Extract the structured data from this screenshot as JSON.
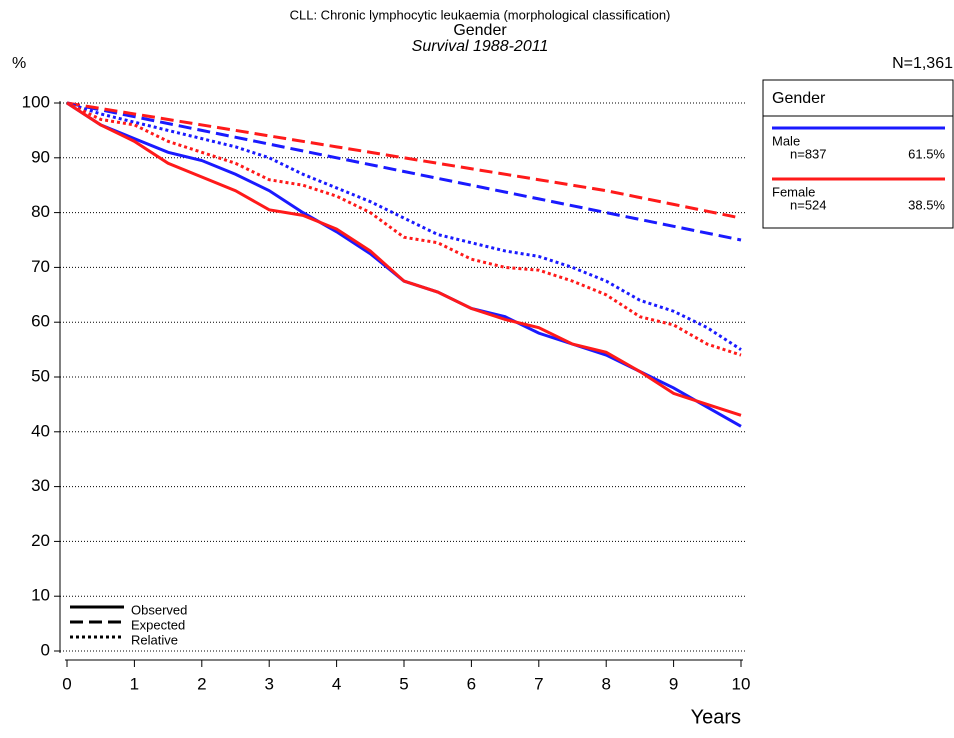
{
  "chart_data": {
    "type": "line",
    "title": "CLL: Chronic lymphocytic leukaemia (morphological classification)",
    "subtitle": "Gender",
    "period": "Survival 1988-2011",
    "y_label": "%",
    "x_label": "Years",
    "total": "N=1,361",
    "legend_title": "Gender",
    "groups": [
      {
        "name": "Male",
        "n_label": "n=837",
        "share_label": "61.5%",
        "color": "#1a1aff"
      },
      {
        "name": "Female",
        "n_label": "n=524",
        "share_label": "38.5%",
        "color": "#ff1a1a"
      }
    ],
    "line_styles": [
      {
        "name": "Observed",
        "dash": "solid"
      },
      {
        "name": "Expected",
        "dash": "dashed"
      },
      {
        "name": "Relative",
        "dash": "dotted"
      }
    ],
    "series": [
      {
        "group": 0,
        "style": 0,
        "x": [
          0,
          0.5,
          1,
          1.5,
          2,
          2.5,
          3,
          3.5,
          4,
          4.5,
          5,
          5.5,
          6,
          6.5,
          7,
          7.5,
          8,
          8.5,
          9,
          9.5,
          10
        ],
        "values": [
          100,
          96,
          93.5,
          91,
          89.5,
          87,
          84,
          80,
          76.5,
          72.5,
          67.5,
          65.5,
          62.5,
          61,
          58,
          56,
          54,
          51,
          48,
          44.5,
          41
        ]
      },
      {
        "group": 1,
        "style": 0,
        "x": [
          0,
          0.5,
          1,
          1.5,
          2,
          2.5,
          3,
          3.5,
          4,
          4.5,
          5,
          5.5,
          6,
          6.5,
          7,
          7.5,
          8,
          8.5,
          9,
          9.5,
          10
        ],
        "values": [
          100,
          96,
          93,
          89,
          86.5,
          84,
          80.5,
          79.5,
          77,
          73,
          67.5,
          65.5,
          62.5,
          60.5,
          59,
          56,
          54.5,
          51,
          47,
          45,
          43
        ]
      },
      {
        "group": 0,
        "style": 1,
        "x": [
          0,
          1,
          2,
          3,
          4,
          5,
          6,
          7,
          8,
          9,
          10
        ],
        "values": [
          100,
          97.5,
          95,
          92.5,
          90,
          87.5,
          85,
          82.5,
          80,
          77.5,
          75
        ]
      },
      {
        "group": 1,
        "style": 1,
        "x": [
          0,
          1,
          2,
          3,
          4,
          5,
          6,
          7,
          8,
          9,
          10
        ],
        "values": [
          100,
          98,
          96,
          94,
          92,
          90,
          88,
          86,
          84,
          81.5,
          79
        ]
      },
      {
        "group": 0,
        "style": 2,
        "x": [
          0,
          0.5,
          1,
          1.5,
          2,
          2.5,
          3,
          3.5,
          4,
          4.5,
          5,
          5.5,
          6,
          6.5,
          7,
          7.5,
          8,
          8.5,
          9,
          9.5,
          10
        ],
        "values": [
          100,
          98,
          96.5,
          95,
          93.5,
          92,
          90,
          87,
          84.5,
          82,
          79,
          76,
          74.5,
          73,
          72,
          70,
          67.5,
          64,
          62,
          59,
          55
        ]
      },
      {
        "group": 1,
        "style": 2,
        "x": [
          0,
          0.5,
          1,
          1.5,
          2,
          2.5,
          3,
          3.5,
          4,
          4.5,
          5,
          5.5,
          6,
          6.5,
          7,
          7.5,
          8,
          8.5,
          9,
          9.5,
          10
        ],
        "values": [
          100,
          97,
          96,
          93,
          91,
          89,
          86,
          85,
          83,
          80,
          75.5,
          74.5,
          71.5,
          70,
          69.5,
          67.5,
          65,
          61,
          59.5,
          56,
          54
        ]
      }
    ],
    "xlim": [
      0,
      10
    ],
    "xticks": [
      0,
      1,
      2,
      3,
      4,
      5,
      6,
      7,
      8,
      9,
      10
    ],
    "ylim": [
      0,
      100
    ],
    "yticks": [
      0,
      10,
      20,
      30,
      40,
      50,
      60,
      70,
      80,
      90,
      100
    ],
    "grid": true
  }
}
